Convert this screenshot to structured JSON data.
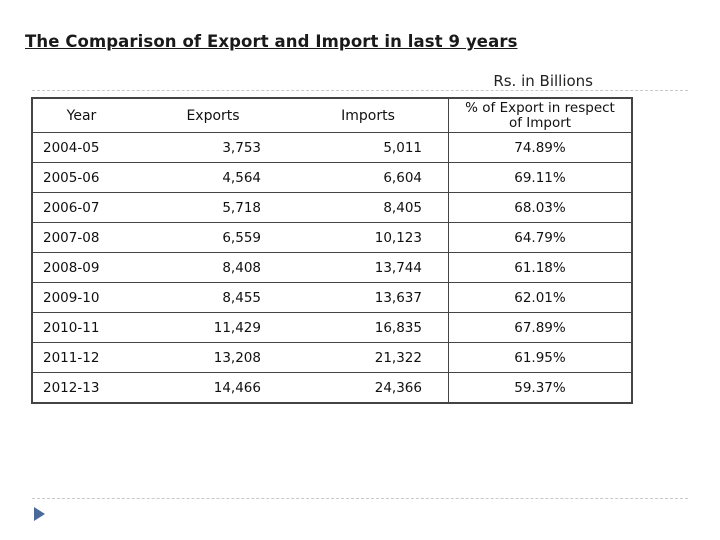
{
  "title": "The Comparison of Export and Import in last 9 years",
  "units": "Rs. in Billions",
  "table": {
    "headers": {
      "year": "Year",
      "exports": "Exports",
      "imports": "Imports",
      "pct_line1": "% of Export in respect",
      "pct_line2": "of Import"
    },
    "rows": [
      {
        "year": "2004-05",
        "exports": "3,753",
        "imports": "5,011",
        "pct": "74.89%"
      },
      {
        "year": "2005-06",
        "exports": "4,564",
        "imports": "6,604",
        "pct": "69.11%"
      },
      {
        "year": "2006-07",
        "exports": "5,718",
        "imports": "8,405",
        "pct": "68.03%"
      },
      {
        "year": "2007-08",
        "exports": "6,559",
        "imports": "10,123",
        "pct": "64.79%"
      },
      {
        "year": "2008-09",
        "exports": "8,408",
        "imports": "13,744",
        "pct": "61.18%"
      },
      {
        "year": "2009-10",
        "exports": "8,455",
        "imports": "13,637",
        "pct": "62.01%"
      },
      {
        "year": "2010-11",
        "exports": "11,429",
        "imports": "16,835",
        "pct": "67.89%"
      },
      {
        "year": "2011-12",
        "exports": "13,208",
        "imports": "21,322",
        "pct": "61.95%"
      },
      {
        "year": "2012-13",
        "exports": "14,466",
        "imports": "24,366",
        "pct": "59.37%"
      }
    ]
  }
}
